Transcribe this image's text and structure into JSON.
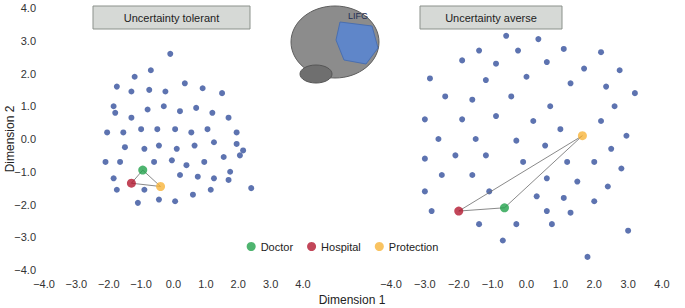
{
  "x_label": "Dimension 1",
  "y_label": "Dimension 2",
  "annotations": [
    "LIFG"
  ],
  "chart_data": [
    {
      "type": "scatter",
      "title": "Uncertainty tolerant",
      "xlim": [
        -4,
        4
      ],
      "ylim": [
        -4,
        4
      ],
      "xticks": [
        {
          "value": -4,
          "label": "−4.0"
        },
        {
          "value": -3,
          "label": "−3.0"
        },
        {
          "value": -2,
          "label": "−2.0"
        },
        {
          "value": -1,
          "label": "−1.0"
        },
        {
          "value": 0,
          "label": "0.0"
        },
        {
          "value": 1,
          "label": "1.0"
        },
        {
          "value": 2,
          "label": "2.0"
        },
        {
          "value": 3,
          "label": "3.0"
        },
        {
          "value": 4,
          "label": "4.0"
        }
      ],
      "yticks": [
        {
          "value": -4,
          "label": "−4.0"
        },
        {
          "value": -3,
          "label": "−3.0"
        },
        {
          "value": -2,
          "label": "−2.0"
        },
        {
          "value": -1,
          "label": "−1.0"
        },
        {
          "value": 0,
          "label": "0.0"
        },
        {
          "value": 1,
          "label": "1.0"
        },
        {
          "value": 2,
          "label": "2.0"
        },
        {
          "value": 3,
          "label": "3.0"
        },
        {
          "value": 4,
          "label": "4.0"
        }
      ],
      "tick_labels": true,
      "grid": false,
      "legend": "bottom",
      "series": [
        {
          "color": "#34509c",
          "marker": "circle",
          "x": [
            -0.1,
            -0.7,
            -1.2,
            -1.75,
            -1.3,
            -0.75,
            -0.25,
            0.35,
            0.9,
            1.5,
            -1.85,
            -1.8,
            -1.3,
            -0.8,
            -0.3,
            0.2,
            0.7,
            1.2,
            1.7,
            -2.05,
            -1.55,
            -1.0,
            -0.5,
            0.05,
            0.55,
            1.05,
            1.95,
            -1.5,
            -0.9,
            -0.45,
            0.1,
            0.65,
            1.25,
            1.95,
            -2.1,
            -1.65,
            -0.6,
            -0.05,
            0.4,
            0.95,
            1.55,
            2.05,
            -1.85,
            -1.75,
            0.2,
            0.75,
            1.25,
            1.75,
            1.7,
            -0.9,
            -0.45,
            0.05,
            0.6,
            1.15,
            -1.1,
            2.4,
            2.15
          ],
          "y": [
            2.6,
            2.1,
            1.9,
            1.6,
            1.45,
            1.5,
            1.45,
            1.7,
            1.55,
            1.4,
            1.0,
            0.8,
            0.65,
            0.9,
            1.0,
            0.85,
            0.95,
            0.8,
            0.65,
            0.2,
            0.2,
            0.3,
            0.3,
            0.3,
            0.2,
            0.3,
            0.2,
            -0.25,
            -0.3,
            -0.2,
            -0.3,
            -0.2,
            -0.1,
            -0.15,
            -0.7,
            -0.7,
            -0.7,
            -0.65,
            -0.8,
            -0.7,
            -0.55,
            -0.5,
            -1.2,
            -1.55,
            -1.1,
            -1.15,
            -1.2,
            -1.0,
            -1.25,
            -1.55,
            -1.85,
            -1.9,
            -1.7,
            -1.55,
            -1.95,
            -1.5,
            -0.35
          ]
        },
        {
          "name": "Doctor",
          "color": "#22a14b",
          "marker": "circle",
          "x": [
            -0.95
          ],
          "y": [
            -0.95
          ]
        },
        {
          "name": "Hospital",
          "color": "#b3182f",
          "marker": "circle",
          "x": [
            -1.3
          ],
          "y": [
            -1.35
          ]
        },
        {
          "name": "Protection",
          "color": "#f7b43a",
          "marker": "circle",
          "x": [
            -0.4
          ],
          "y": [
            -1.45
          ]
        }
      ]
    },
    {
      "type": "scatter",
      "title": "Uncertainty averse",
      "xlim": [
        -4,
        4
      ],
      "ylim": [
        -4,
        4
      ],
      "xticks": [
        {
          "value": -4,
          "label": "−4.0"
        },
        {
          "value": -3,
          "label": "−3.0"
        },
        {
          "value": -2,
          "label": "−2.0"
        },
        {
          "value": -1,
          "label": "−1.0"
        },
        {
          "value": 0,
          "label": "0.0"
        },
        {
          "value": 1,
          "label": "1.0"
        },
        {
          "value": 2,
          "label": "2.0"
        },
        {
          "value": 3,
          "label": "3.0"
        },
        {
          "value": 4,
          "label": "4.0"
        }
      ],
      "yticks": [
        -4,
        -3,
        -2,
        -1,
        0,
        1,
        2,
        3,
        4
      ],
      "tick_labels": "x",
      "grid": false,
      "series": [
        {
          "color": "#34509c",
          "marker": "circle",
          "x": [
            -0.6,
            0.35,
            -1.4,
            -0.25,
            1.1,
            2.2,
            -1.9,
            -0.9,
            0.6,
            1.7,
            2.75,
            -2.85,
            -1.2,
            0.0,
            1.3,
            2.35,
            3.2,
            -2.4,
            -1.6,
            -0.45,
            0.7,
            2.6,
            -3.0,
            -1.9,
            -0.9,
            0.2,
            1.0,
            2.2,
            2.95,
            -2.6,
            -1.5,
            -0.3,
            0.55,
            2.5,
            -3.0,
            -2.1,
            -1.2,
            -0.1,
            1.2,
            2.0,
            2.8,
            -2.5,
            -1.6,
            0.6,
            1.5,
            2.4,
            -3.0,
            -1.1,
            0.3,
            1.1,
            2.0,
            -2.8,
            0.6,
            1.3,
            -1.4,
            -0.3,
            0.75,
            3.0,
            -0.7,
            1.8
          ],
          "y": [
            3.15,
            3.05,
            2.7,
            2.7,
            2.75,
            2.65,
            2.4,
            2.3,
            2.35,
            2.15,
            2.1,
            1.85,
            1.8,
            1.9,
            1.7,
            1.6,
            1.4,
            1.3,
            1.2,
            1.3,
            1.0,
            1.0,
            0.6,
            0.6,
            0.7,
            0.55,
            0.3,
            0.55,
            0.1,
            0.0,
            0.0,
            -0.05,
            -0.2,
            -0.3,
            -0.6,
            -0.5,
            -0.5,
            -0.7,
            -0.7,
            -0.7,
            -0.9,
            -1.1,
            -1.1,
            -1.2,
            -1.3,
            -1.45,
            -1.6,
            -1.6,
            -1.75,
            -1.8,
            -1.9,
            -2.2,
            -2.2,
            -2.25,
            -2.6,
            -2.6,
            -2.6,
            -2.8,
            -3.1,
            -3.6
          ]
        },
        {
          "name": "Doctor",
          "color": "#22a14b",
          "marker": "circle",
          "x": [
            -0.65
          ],
          "y": [
            -2.1
          ]
        },
        {
          "name": "Hospital",
          "color": "#b3182f",
          "marker": "circle",
          "x": [
            -2.0
          ],
          "y": [
            -2.2
          ]
        },
        {
          "name": "Protection",
          "color": "#f7b43a",
          "marker": "circle",
          "x": [
            1.65
          ],
          "y": [
            0.1
          ]
        }
      ]
    }
  ]
}
